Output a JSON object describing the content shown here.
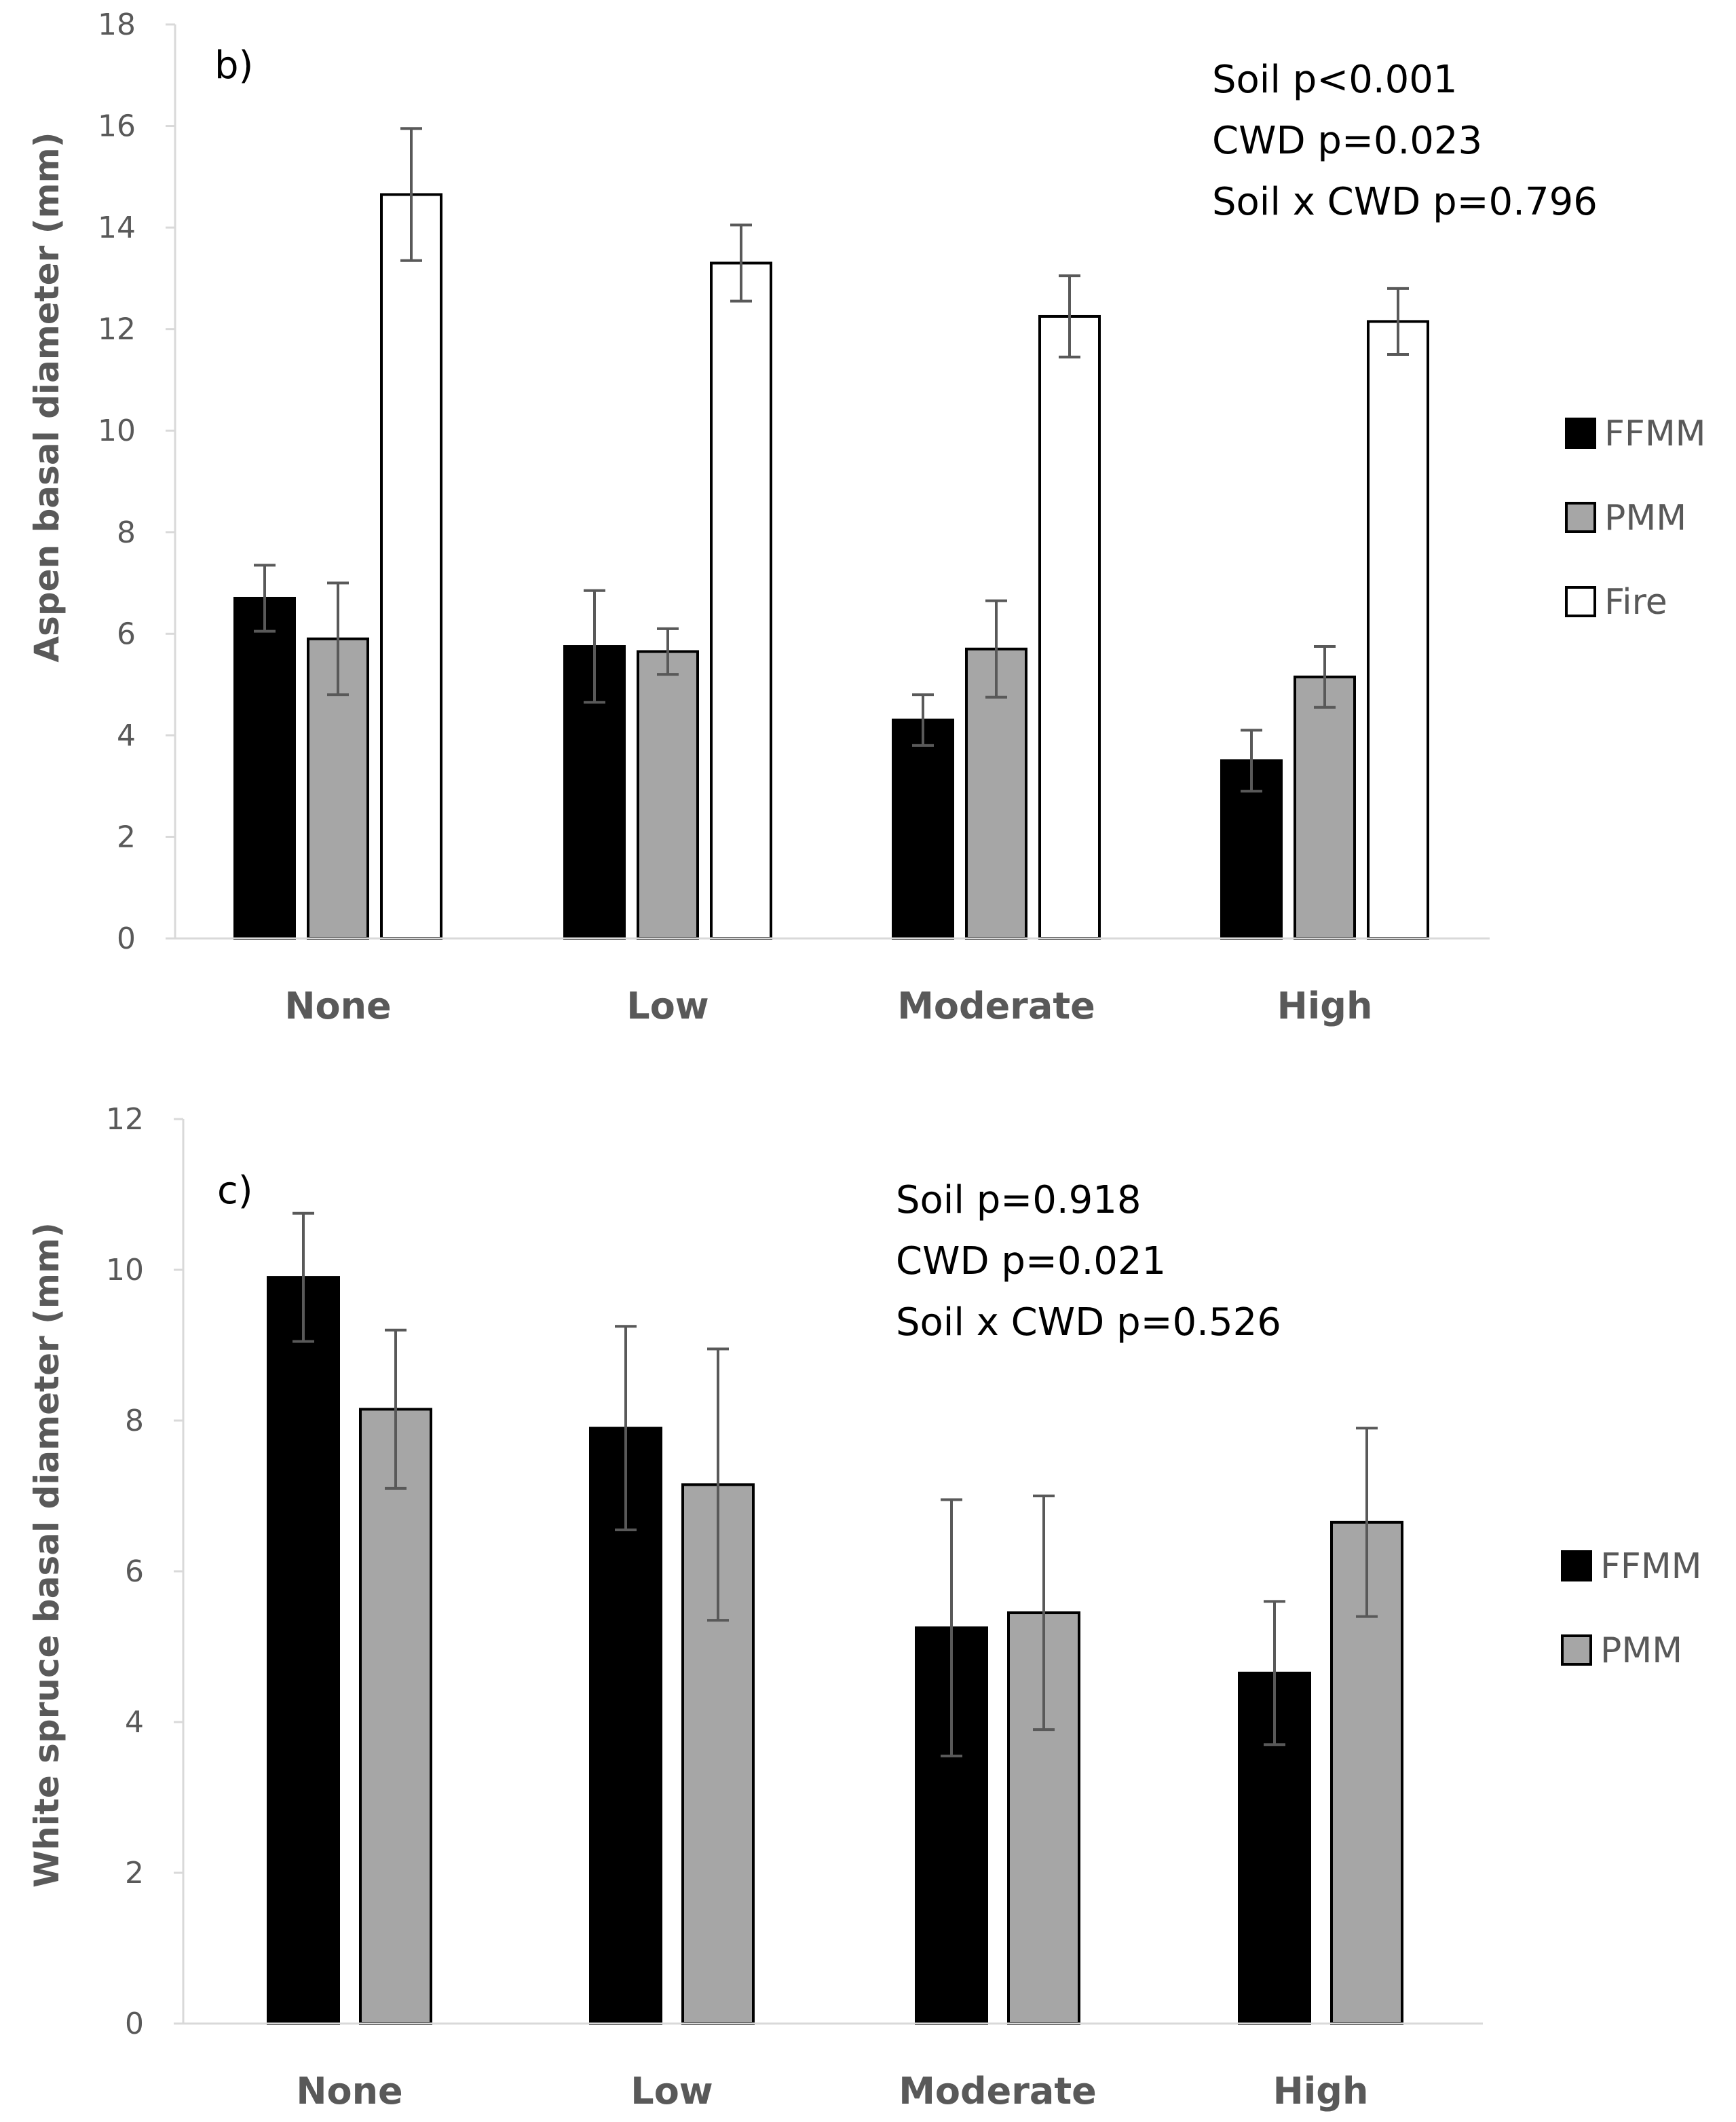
{
  "colors": {
    "FFMM": "#000000",
    "PMM": "#a6a6a6",
    "Fire": "#ffffff",
    "axis": "#d9d9d9",
    "text": "#595959",
    "errorbar": "#595959"
  },
  "chart_data": [
    {
      "type": "bar",
      "panel_label": "b)",
      "title": "",
      "xlabel": "",
      "ylabel": "Aspen basal diameter (mm)",
      "ylim": [
        0,
        18
      ],
      "yticks": [
        "0",
        "2",
        "4",
        "6",
        "8",
        "10",
        "12",
        "14",
        "16",
        "18"
      ],
      "grid": false,
      "legend_position": "right",
      "categories": [
        "None",
        "Low",
        "Moderate",
        "High"
      ],
      "series": [
        {
          "name": "FFMM",
          "values": [
            6.7,
            5.75,
            4.3,
            3.5
          ],
          "errors": [
            0.65,
            1.1,
            0.5,
            0.6
          ]
        },
        {
          "name": "PMM",
          "values": [
            5.9,
            5.65,
            5.7,
            5.15
          ],
          "errors": [
            1.1,
            0.45,
            0.95,
            0.6
          ]
        },
        {
          "name": "Fire",
          "values": [
            14.65,
            13.3,
            12.25,
            12.15
          ],
          "errors": [
            1.3,
            0.75,
            0.8,
            0.65
          ]
        }
      ],
      "annotations": [
        "Soil p<0.001",
        "CWD p=0.023",
        "Soil x CWD p=0.796"
      ]
    },
    {
      "type": "bar",
      "panel_label": "c)",
      "title": "",
      "xlabel": "",
      "ylabel": "White spruce basal diameter (mm)",
      "ylim": [
        0,
        12
      ],
      "yticks": [
        "0",
        "2",
        "4",
        "6",
        "8",
        "10",
        "12"
      ],
      "grid": false,
      "legend_position": "right",
      "categories": [
        "None",
        "Low",
        "Moderate",
        "High"
      ],
      "series": [
        {
          "name": "FFMM",
          "values": [
            9.9,
            7.9,
            5.25,
            4.65
          ],
          "errors": [
            0.85,
            1.35,
            1.7,
            0.95
          ]
        },
        {
          "name": "PMM",
          "values": [
            8.15,
            7.15,
            5.45,
            6.65
          ],
          "errors": [
            1.05,
            1.8,
            1.55,
            1.25
          ]
        }
      ],
      "annotations": [
        "Soil p=0.918",
        "CWD p=0.021",
        "Soil x CWD p=0.526"
      ]
    }
  ]
}
